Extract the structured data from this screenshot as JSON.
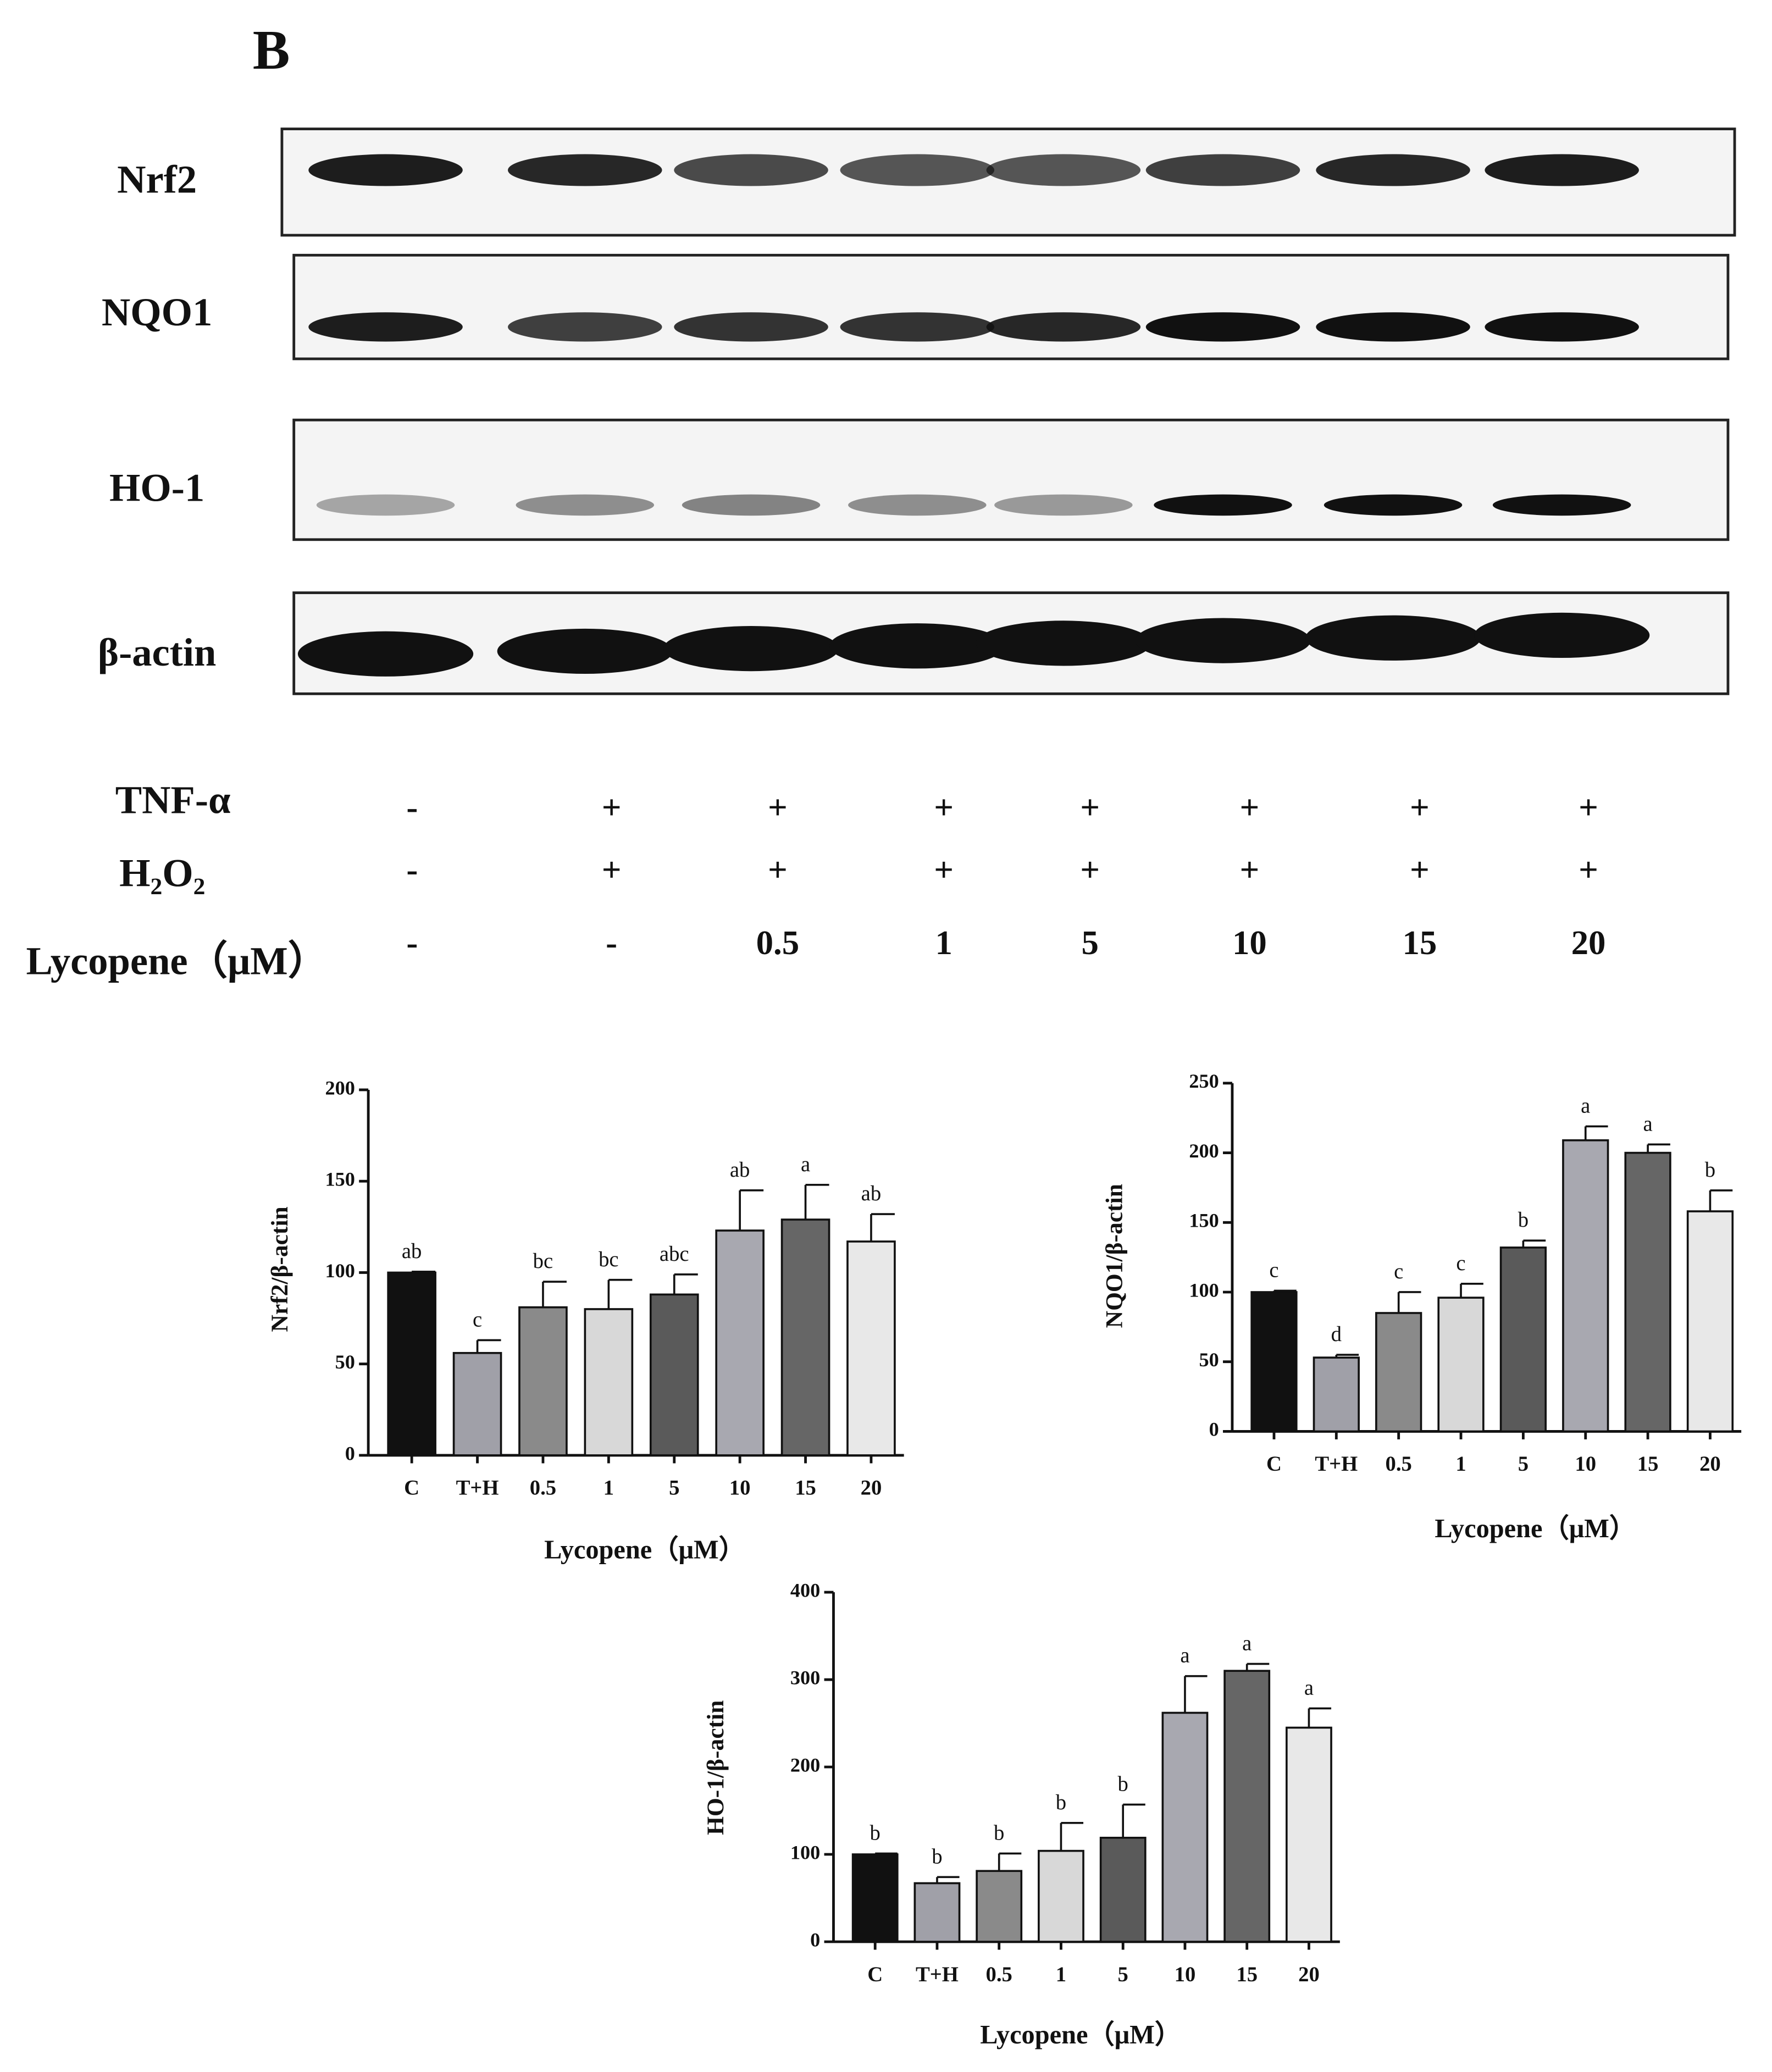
{
  "panel_label": "B",
  "blot": {
    "rows": [
      "Nrf2",
      "NQO1",
      "HO-1",
      "β-actin"
    ],
    "treatments": [
      {
        "name": "TNF-α",
        "values": [
          "-",
          "+",
          "+",
          "+",
          "+",
          "+",
          "+",
          "+"
        ]
      },
      {
        "name": "H₂O₂",
        "values": [
          "-",
          "+",
          "+",
          "+",
          "+",
          "+",
          "+",
          "+"
        ]
      },
      {
        "name": "Lycopene（μM）",
        "values": [
          "-",
          "-",
          "0.5",
          "1",
          "5",
          "10",
          "15",
          "20"
        ]
      }
    ]
  },
  "chart_data": [
    {
      "type": "bar",
      "ylabel": "Nrf2/β-actin",
      "xlabel": "Lycopene（μM）",
      "categories": [
        "C",
        "T+H",
        "0.5",
        "1",
        "5",
        "10",
        "15",
        "20"
      ],
      "values": [
        100,
        56,
        81,
        80,
        88,
        123,
        129,
        117
      ],
      "errors": [
        0.5,
        7,
        14,
        16,
        11,
        22,
        19,
        15
      ],
      "annotations": [
        "ab",
        "c",
        "bc",
        "bc",
        "abc",
        "ab",
        "a",
        "ab"
      ],
      "colors": [
        "#111111",
        "#a0a0a8",
        "#8a8a8a",
        "#d8d8d8",
        "#5a5a5a",
        "#a8a8b0",
        "#666666",
        "#e8e8e8"
      ],
      "ylim": [
        0,
        200
      ],
      "yticks": [
        0,
        50,
        100,
        150,
        200
      ]
    },
    {
      "type": "bar",
      "ylabel": "NQO1/β-actin",
      "xlabel": "Lycopene（μM）",
      "categories": [
        "C",
        "T+H",
        "0.5",
        "1",
        "5",
        "10",
        "15",
        "20"
      ],
      "values": [
        100,
        53,
        85,
        96,
        132,
        209,
        200,
        158
      ],
      "errors": [
        1,
        2,
        15,
        10,
        5,
        10,
        6,
        15
      ],
      "annotations": [
        "c",
        "d",
        "c",
        "c",
        "b",
        "a",
        "a",
        "b"
      ],
      "colors": [
        "#111111",
        "#a0a0a8",
        "#8a8a8a",
        "#d8d8d8",
        "#5a5a5a",
        "#a8a8b0",
        "#666666",
        "#e8e8e8"
      ],
      "ylim": [
        0,
        250
      ],
      "yticks": [
        0,
        50,
        100,
        150,
        200,
        250
      ]
    },
    {
      "type": "bar",
      "ylabel": "HO-1/β-actin",
      "xlabel": "Lycopene（μM）",
      "categories": [
        "C",
        "T+H",
        "0.5",
        "1",
        "5",
        "10",
        "15",
        "20"
      ],
      "values": [
        100,
        67,
        81,
        104,
        119,
        262,
        310,
        245
      ],
      "errors": [
        1,
        7,
        20,
        32,
        38,
        42,
        8,
        22
      ],
      "annotations": [
        "b",
        "b",
        "b",
        "b",
        "b",
        "a",
        "a",
        "a"
      ],
      "colors": [
        "#111111",
        "#a0a0a8",
        "#8a8a8a",
        "#d8d8d8",
        "#5a5a5a",
        "#a8a8b0",
        "#666666",
        "#e8e8e8"
      ],
      "ylim": [
        0,
        400
      ],
      "yticks": [
        0,
        100,
        200,
        300,
        400
      ]
    }
  ]
}
